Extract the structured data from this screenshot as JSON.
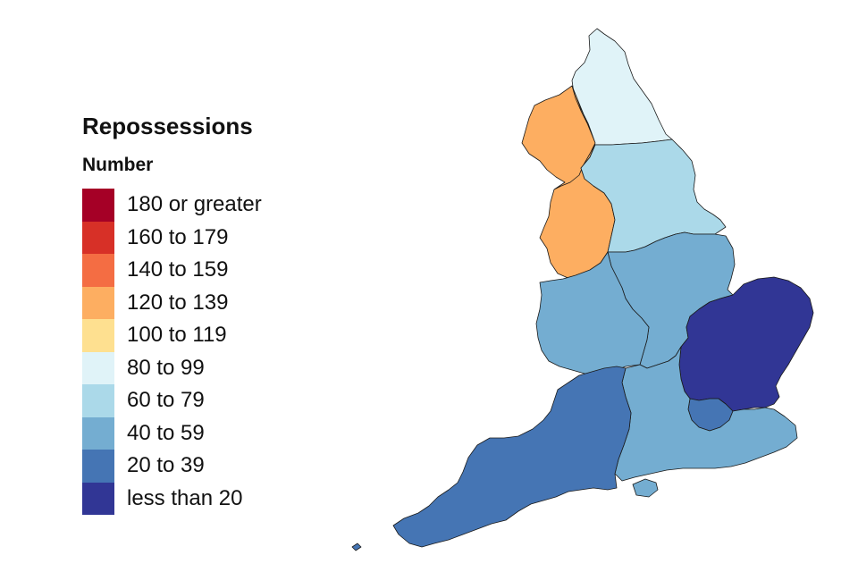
{
  "legend": {
    "title": "Repossessions",
    "subtitle": "Number",
    "items": [
      {
        "label": "180 or greater",
        "color": "#a50026"
      },
      {
        "label": "160 to 179",
        "color": "#d73027"
      },
      {
        "label": "140 to 159",
        "color": "#f46d43"
      },
      {
        "label": "120 to 139",
        "color": "#fdae61"
      },
      {
        "label": "100 to 119",
        "color": "#fee090"
      },
      {
        "label": "80 to 99",
        "color": "#e0f3f8"
      },
      {
        "label": "60 to 79",
        "color": "#abd9e9"
      },
      {
        "label": "40 to 59",
        "color": "#74add1"
      },
      {
        "label": "20 to 39",
        "color": "#4575b4"
      },
      {
        "label": "less than 20",
        "color": "#313695"
      }
    ]
  },
  "regions": [
    {
      "name": "North East",
      "band": "80 to 99",
      "color": "#e0f3f8"
    },
    {
      "name": "North West",
      "band": "120 to 139",
      "color": "#fdae61"
    },
    {
      "name": "Yorkshire and The Humber",
      "band": "60 to 79",
      "color": "#abd9e9"
    },
    {
      "name": "East Midlands",
      "band": "40 to 59",
      "color": "#74add1"
    },
    {
      "name": "West Midlands",
      "band": "40 to 59",
      "color": "#74add1"
    },
    {
      "name": "East of England",
      "band": "less than 20",
      "color": "#313695"
    },
    {
      "name": "London",
      "band": "20 to 39",
      "color": "#4575b4"
    },
    {
      "name": "South East",
      "band": "40 to 59",
      "color": "#74add1"
    },
    {
      "name": "South West",
      "band": "20 to 39",
      "color": "#4575b4"
    }
  ]
}
